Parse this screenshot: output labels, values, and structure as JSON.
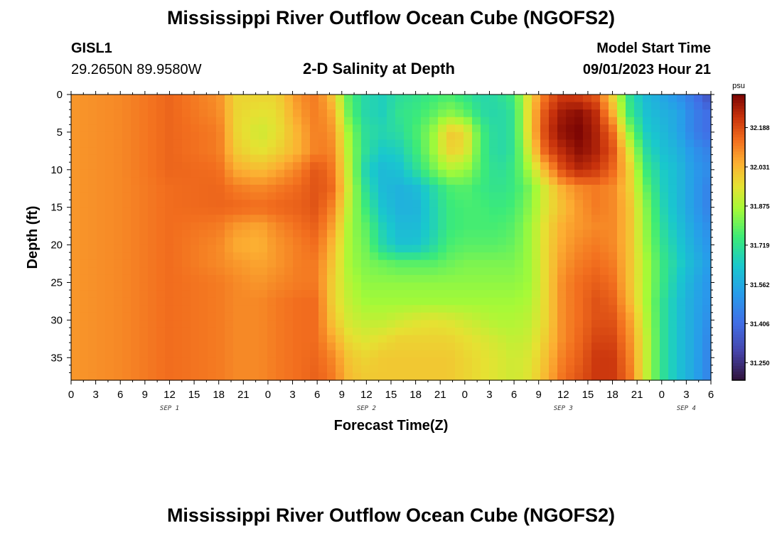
{
  "header": {
    "title": "Mississippi River Outflow Ocean Cube (NGOFS2)",
    "station": "GISL1",
    "coords": "29.2650N  89.9580W",
    "subtitle": "2-D Salinity at Depth",
    "model_start_label": "Model Start Time",
    "model_start_value": "09/01/2023 Hour 21"
  },
  "footer": {
    "title": "Mississippi River Outflow Ocean Cube (NGOFS2)"
  },
  "chart_data": {
    "type": "heatmap",
    "title": "2-D Salinity at Depth",
    "xlabel": "Forecast Time(Z)",
    "ylabel": "Depth (ft)",
    "x_ticks": [
      "0",
      "3",
      "6",
      "9",
      "12",
      "15",
      "18",
      "21",
      "0",
      "3",
      "6",
      "9",
      "12",
      "15",
      "18",
      "21",
      "0",
      "3",
      "6",
      "9",
      "12",
      "15",
      "18",
      "21",
      "0",
      "3",
      "6"
    ],
    "x_range_hours": [
      0,
      78
    ],
    "date_labels": [
      {
        "text": "SEP 1",
        "hour": 12
      },
      {
        "text": "SEP 2",
        "hour": 36
      },
      {
        "text": "SEP 3",
        "hour": 60
      },
      {
        "text": "SEP 4",
        "hour": 75
      }
    ],
    "y_ticks": [
      0,
      5,
      10,
      15,
      20,
      25,
      30,
      35
    ],
    "y_range_ft": [
      0,
      38
    ],
    "colorbar": {
      "unit": "psu",
      "min": 31.18,
      "max": 32.32,
      "ticks": [
        "32.188",
        "32.031",
        "31.875",
        "31.719",
        "31.562",
        "31.406",
        "31.250"
      ],
      "tick_values": [
        32.188,
        32.031,
        31.875,
        31.719,
        31.562,
        31.406,
        31.25
      ]
    },
    "columns_hours": [
      0,
      6,
      12,
      18,
      20,
      23,
      25,
      28,
      30,
      32,
      34,
      36,
      38,
      40,
      42,
      44,
      46,
      48,
      50,
      52,
      54,
      56,
      58,
      60,
      62,
      64,
      66,
      68,
      70,
      72,
      74,
      76,
      78
    ],
    "rows_ft": [
      0,
      2.5,
      5,
      7.5,
      10,
      12.5,
      15,
      17.5,
      20,
      22.5,
      25,
      27.5,
      30,
      32.5,
      35,
      38
    ],
    "salinity_psu": [
      [
        32.08,
        32.1,
        32.15,
        32.09,
        31.98,
        31.98,
        31.98,
        32.1,
        32.12,
        32.0,
        31.76,
        31.68,
        31.66,
        31.7,
        31.72,
        31.74,
        31.76,
        31.72,
        31.68,
        31.7,
        31.75,
        31.98,
        32.15,
        32.22,
        32.2,
        32.16,
        31.98,
        31.72,
        31.6,
        31.55,
        31.5,
        31.42,
        31.32
      ],
      [
        32.08,
        32.1,
        32.15,
        32.1,
        31.98,
        31.95,
        31.96,
        32.08,
        32.12,
        32.05,
        31.78,
        31.68,
        31.66,
        31.72,
        31.74,
        31.78,
        31.84,
        31.8,
        31.7,
        31.68,
        31.72,
        32.0,
        32.2,
        32.28,
        32.3,
        32.24,
        32.05,
        31.75,
        31.62,
        31.58,
        31.55,
        31.45,
        31.4
      ],
      [
        32.08,
        32.1,
        32.15,
        32.12,
        31.98,
        31.92,
        31.95,
        32.05,
        32.12,
        32.08,
        31.84,
        31.7,
        31.68,
        31.7,
        31.76,
        31.84,
        32.0,
        31.98,
        31.76,
        31.68,
        31.72,
        32.0,
        32.22,
        32.3,
        32.32,
        32.26,
        32.15,
        31.85,
        31.65,
        31.6,
        31.55,
        31.45,
        31.4
      ],
      [
        32.08,
        32.1,
        32.15,
        32.12,
        32.0,
        31.95,
        31.98,
        32.05,
        32.12,
        32.1,
        31.86,
        31.7,
        31.64,
        31.66,
        31.74,
        31.84,
        31.98,
        31.96,
        31.76,
        31.68,
        31.72,
        31.95,
        32.18,
        32.25,
        32.3,
        32.26,
        32.18,
        31.95,
        31.7,
        31.62,
        31.58,
        31.5,
        31.45
      ],
      [
        32.08,
        32.1,
        32.15,
        32.14,
        32.05,
        32.02,
        32.05,
        32.12,
        32.18,
        32.12,
        31.88,
        31.66,
        31.6,
        31.62,
        31.7,
        31.8,
        31.88,
        31.86,
        31.76,
        31.7,
        31.74,
        31.88,
        32.05,
        32.2,
        32.25,
        32.22,
        32.15,
        32.0,
        31.75,
        31.65,
        31.6,
        31.52,
        31.48
      ],
      [
        32.08,
        32.1,
        32.14,
        32.15,
        32.12,
        32.1,
        32.12,
        32.15,
        32.18,
        32.14,
        31.9,
        31.7,
        31.6,
        31.58,
        31.6,
        31.68,
        31.76,
        31.78,
        31.74,
        31.72,
        31.74,
        31.82,
        31.95,
        32.05,
        32.1,
        32.12,
        32.1,
        32.0,
        31.8,
        31.66,
        31.6,
        31.52,
        31.45
      ],
      [
        32.08,
        32.1,
        32.14,
        32.15,
        32.15,
        32.14,
        32.15,
        32.16,
        32.18,
        32.1,
        31.88,
        31.74,
        31.62,
        31.58,
        31.58,
        31.66,
        31.74,
        31.76,
        31.76,
        31.74,
        31.76,
        31.84,
        31.95,
        32.02,
        32.08,
        32.12,
        32.1,
        32.02,
        31.84,
        31.68,
        31.6,
        31.52,
        31.45
      ],
      [
        32.08,
        32.1,
        32.14,
        32.12,
        32.08,
        32.06,
        32.1,
        32.14,
        32.16,
        32.06,
        31.86,
        31.78,
        31.66,
        31.6,
        31.6,
        31.66,
        31.74,
        31.76,
        31.76,
        31.76,
        31.78,
        31.86,
        31.97,
        32.05,
        32.08,
        32.1,
        32.1,
        32.02,
        31.85,
        31.7,
        31.62,
        31.54,
        31.48
      ],
      [
        32.08,
        32.1,
        32.14,
        32.1,
        32.05,
        32.04,
        32.08,
        32.12,
        32.14,
        32.02,
        31.86,
        31.8,
        31.68,
        31.62,
        31.62,
        31.68,
        31.76,
        31.78,
        31.78,
        31.78,
        31.8,
        31.86,
        31.98,
        32.06,
        32.1,
        32.12,
        32.1,
        32.02,
        31.86,
        31.72,
        31.64,
        31.56,
        31.5
      ],
      [
        32.08,
        32.1,
        32.14,
        32.1,
        32.08,
        32.06,
        32.08,
        32.12,
        32.12,
        32.0,
        31.86,
        31.82,
        31.8,
        31.78,
        31.78,
        31.78,
        31.8,
        31.82,
        31.82,
        31.82,
        31.82,
        31.86,
        31.98,
        32.08,
        32.12,
        32.14,
        32.12,
        32.02,
        31.88,
        31.74,
        31.66,
        31.58,
        31.52
      ],
      [
        32.08,
        32.1,
        32.14,
        32.12,
        32.1,
        32.08,
        32.1,
        32.12,
        32.12,
        31.98,
        31.88,
        31.84,
        31.84,
        31.84,
        31.84,
        31.84,
        31.84,
        31.84,
        31.84,
        31.84,
        31.84,
        31.86,
        31.98,
        32.1,
        32.14,
        32.16,
        32.14,
        32.02,
        31.88,
        31.74,
        31.64,
        31.56,
        31.5
      ],
      [
        32.08,
        32.1,
        32.14,
        32.12,
        32.1,
        32.1,
        32.12,
        32.14,
        32.14,
        31.98,
        31.9,
        31.86,
        31.86,
        31.86,
        31.86,
        31.86,
        31.86,
        31.86,
        31.86,
        31.86,
        31.86,
        31.88,
        31.98,
        32.1,
        32.14,
        32.18,
        32.16,
        32.04,
        31.88,
        31.72,
        31.62,
        31.55,
        31.5
      ],
      [
        32.08,
        32.1,
        32.14,
        32.12,
        32.1,
        32.1,
        32.12,
        32.14,
        32.14,
        32.0,
        31.92,
        31.9,
        31.9,
        31.92,
        31.94,
        31.95,
        31.94,
        31.92,
        31.9,
        31.88,
        31.88,
        31.9,
        31.98,
        32.1,
        32.14,
        32.18,
        32.18,
        32.08,
        31.9,
        31.72,
        31.62,
        31.55,
        31.48
      ],
      [
        32.08,
        32.1,
        32.14,
        32.12,
        32.1,
        32.1,
        32.12,
        32.14,
        32.14,
        32.05,
        31.96,
        31.94,
        31.96,
        31.98,
        31.98,
        31.98,
        31.98,
        31.96,
        31.94,
        31.92,
        31.9,
        31.92,
        32.0,
        32.1,
        32.15,
        32.2,
        32.2,
        32.1,
        31.92,
        31.72,
        31.62,
        31.55,
        31.46
      ],
      [
        32.08,
        32.1,
        32.14,
        32.12,
        32.1,
        32.1,
        32.12,
        32.14,
        32.15,
        32.1,
        32.0,
        31.98,
        32.0,
        32.0,
        32.0,
        32.0,
        32.0,
        31.98,
        31.96,
        31.94,
        31.92,
        31.94,
        32.02,
        32.12,
        32.16,
        32.22,
        32.22,
        32.12,
        31.92,
        31.72,
        31.62,
        31.55,
        31.45
      ],
      [
        32.08,
        32.1,
        32.14,
        32.12,
        32.1,
        32.1,
        32.12,
        32.14,
        32.16,
        32.12,
        32.02,
        32.0,
        32.0,
        32.0,
        32.0,
        32.0,
        32.0,
        31.98,
        31.96,
        31.94,
        31.92,
        31.95,
        32.04,
        32.14,
        32.18,
        32.22,
        32.22,
        32.14,
        31.92,
        31.72,
        31.62,
        31.55,
        31.45
      ]
    ]
  }
}
